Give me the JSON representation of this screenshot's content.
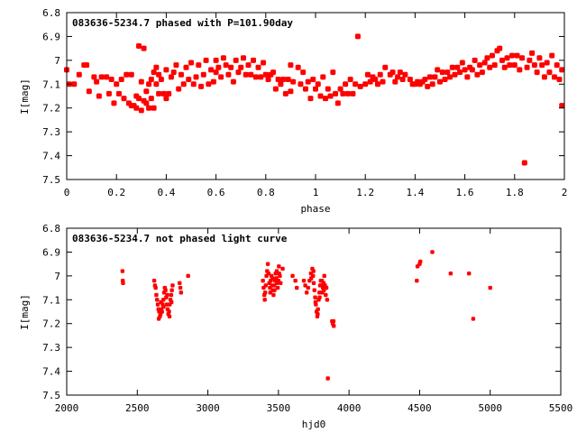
{
  "chart_data": [
    {
      "type": "scatter",
      "title": "083636-5234.7 phased with P=101.90day",
      "xlabel": "phase",
      "ylabel": "I[mag]",
      "xlim": [
        0,
        2
      ],
      "ylim": [
        6.8,
        7.5
      ],
      "y_inverted": true,
      "xticks": [
        "0",
        "0.2",
        "0.4",
        "0.6",
        "0.8",
        "1",
        "1.2",
        "1.4",
        "1.6",
        "1.8",
        "2"
      ],
      "yticks": [
        "6.8",
        "6.9",
        "7",
        "7.1",
        "7.2",
        "7.3",
        "7.4",
        "7.5"
      ],
      "grid": false,
      "color": "#ff0000",
      "points": [
        [
          0.0,
          7.04
        ],
        [
          0.01,
          7.1
        ],
        [
          0.03,
          7.1
        ],
        [
          0.05,
          7.06
        ],
        [
          0.07,
          7.02
        ],
        [
          0.08,
          7.02
        ],
        [
          0.09,
          7.13
        ],
        [
          0.11,
          7.07
        ],
        [
          0.12,
          7.09
        ],
        [
          0.13,
          7.15
        ],
        [
          0.14,
          7.07
        ],
        [
          0.16,
          7.07
        ],
        [
          0.17,
          7.14
        ],
        [
          0.18,
          7.08
        ],
        [
          0.19,
          7.18
        ],
        [
          0.2,
          7.1
        ],
        [
          0.21,
          7.14
        ],
        [
          0.22,
          7.08
        ],
        [
          0.23,
          7.16
        ],
        [
          0.24,
          7.06
        ],
        [
          0.25,
          7.18
        ],
        [
          0.26,
          7.06
        ],
        [
          0.26,
          7.19
        ],
        [
          0.27,
          7.19
        ],
        [
          0.28,
          7.15
        ],
        [
          0.28,
          7.2
        ],
        [
          0.29,
          7.16
        ],
        [
          0.29,
          6.94
        ],
        [
          0.3,
          7.21
        ],
        [
          0.3,
          7.09
        ],
        [
          0.31,
          7.17
        ],
        [
          0.31,
          6.95
        ],
        [
          0.32,
          7.13
        ],
        [
          0.32,
          7.18
        ],
        [
          0.33,
          7.1
        ],
        [
          0.33,
          7.2
        ],
        [
          0.34,
          7.08
        ],
        [
          0.34,
          7.16
        ],
        [
          0.35,
          7.05
        ],
        [
          0.35,
          7.2
        ],
        [
          0.36,
          7.1
        ],
        [
          0.36,
          7.03
        ],
        [
          0.37,
          7.06
        ],
        [
          0.37,
          7.14
        ],
        [
          0.38,
          7.08
        ],
        [
          0.39,
          7.14
        ],
        [
          0.4,
          7.04
        ],
        [
          0.4,
          7.16
        ],
        [
          0.41,
          7.14
        ],
        [
          0.42,
          7.07
        ],
        [
          0.43,
          7.05
        ],
        [
          0.44,
          7.02
        ],
        [
          0.45,
          7.12
        ],
        [
          0.46,
          7.06
        ],
        [
          0.47,
          7.1
        ],
        [
          0.48,
          7.03
        ],
        [
          0.49,
          7.08
        ],
        [
          0.5,
          7.01
        ],
        [
          0.51,
          7.1
        ],
        [
          0.52,
          7.07
        ],
        [
          0.53,
          7.02
        ],
        [
          0.54,
          7.11
        ],
        [
          0.55,
          7.06
        ],
        [
          0.56,
          7.0
        ],
        [
          0.57,
          7.1
        ],
        [
          0.58,
          7.04
        ],
        [
          0.59,
          7.09
        ],
        [
          0.6,
          7.0
        ],
        [
          0.6,
          7.05
        ],
        [
          0.61,
          7.03
        ],
        [
          0.62,
          7.07
        ],
        [
          0.63,
          6.99
        ],
        [
          0.64,
          7.02
        ],
        [
          0.65,
          7.06
        ],
        [
          0.66,
          7.03
        ],
        [
          0.67,
          7.09
        ],
        [
          0.68,
          7.0
        ],
        [
          0.69,
          7.05
        ],
        [
          0.7,
          7.03
        ],
        [
          0.71,
          6.99
        ],
        [
          0.72,
          7.06
        ],
        [
          0.73,
          7.02
        ],
        [
          0.74,
          7.06
        ],
        [
          0.75,
          7.0
        ],
        [
          0.76,
          7.07
        ],
        [
          0.77,
          7.03
        ],
        [
          0.78,
          7.07
        ],
        [
          0.79,
          7.01
        ],
        [
          0.8,
          7.06
        ],
        [
          0.81,
          7.08
        ],
        [
          0.82,
          7.06
        ],
        [
          0.83,
          7.05
        ],
        [
          0.84,
          7.12
        ],
        [
          0.85,
          7.08
        ],
        [
          0.86,
          7.1
        ],
        [
          0.87,
          7.08
        ],
        [
          0.88,
          7.14
        ],
        [
          0.89,
          7.08
        ],
        [
          0.9,
          7.13
        ],
        [
          0.9,
          7.02
        ],
        [
          0.91,
          7.09
        ],
        [
          0.93,
          7.03
        ],
        [
          0.94,
          7.1
        ],
        [
          0.95,
          7.05
        ],
        [
          0.96,
          7.12
        ],
        [
          0.97,
          7.09
        ],
        [
          0.98,
          7.16
        ],
        [
          0.99,
          7.08
        ],
        [
          1.0,
          7.12
        ],
        [
          1.01,
          7.1
        ],
        [
          1.02,
          7.15
        ],
        [
          1.03,
          7.07
        ],
        [
          1.04,
          7.16
        ],
        [
          1.05,
          7.12
        ],
        [
          1.06,
          7.15
        ],
        [
          1.07,
          7.05
        ],
        [
          1.08,
          7.14
        ],
        [
          1.09,
          7.18
        ],
        [
          1.1,
          7.12
        ],
        [
          1.11,
          7.14
        ],
        [
          1.12,
          7.1
        ],
        [
          1.13,
          7.14
        ],
        [
          1.14,
          7.08
        ],
        [
          1.15,
          7.14
        ],
        [
          1.16,
          7.1
        ],
        [
          1.17,
          6.9
        ],
        [
          1.18,
          7.11
        ],
        [
          1.2,
          7.1
        ],
        [
          1.21,
          7.06
        ],
        [
          1.22,
          7.09
        ],
        [
          1.23,
          7.07
        ],
        [
          1.24,
          7.08
        ],
        [
          1.25,
          7.1
        ],
        [
          1.26,
          7.06
        ],
        [
          1.27,
          7.09
        ],
        [
          1.28,
          7.03
        ],
        [
          1.3,
          7.06
        ],
        [
          1.31,
          7.05
        ],
        [
          1.32,
          7.09
        ],
        [
          1.33,
          7.07
        ],
        [
          1.34,
          7.05
        ],
        [
          1.35,
          7.08
        ],
        [
          1.36,
          7.06
        ],
        [
          1.38,
          7.08
        ],
        [
          1.39,
          7.1
        ],
        [
          1.4,
          7.1
        ],
        [
          1.41,
          7.09
        ],
        [
          1.42,
          7.1
        ],
        [
          1.43,
          7.09
        ],
        [
          1.44,
          7.08
        ],
        [
          1.45,
          7.11
        ],
        [
          1.46,
          7.07
        ],
        [
          1.47,
          7.1
        ],
        [
          1.48,
          7.07
        ],
        [
          1.49,
          7.04
        ],
        [
          1.5,
          7.09
        ],
        [
          1.51,
          7.05
        ],
        [
          1.52,
          7.08
        ],
        [
          1.53,
          7.05
        ],
        [
          1.54,
          7.07
        ],
        [
          1.55,
          7.03
        ],
        [
          1.56,
          7.06
        ],
        [
          1.57,
          7.03
        ],
        [
          1.58,
          7.05
        ],
        [
          1.59,
          7.01
        ],
        [
          1.6,
          7.04
        ],
        [
          1.61,
          7.07
        ],
        [
          1.62,
          7.03
        ],
        [
          1.63,
          7.04
        ],
        [
          1.64,
          7.0
        ],
        [
          1.65,
          7.06
        ],
        [
          1.66,
          7.02
        ],
        [
          1.67,
          7.05
        ],
        [
          1.68,
          7.01
        ],
        [
          1.69,
          6.99
        ],
        [
          1.7,
          7.03
        ],
        [
          1.71,
          6.98
        ],
        [
          1.72,
          7.02
        ],
        [
          1.73,
          6.96
        ],
        [
          1.74,
          6.95
        ],
        [
          1.75,
          7.0
        ],
        [
          1.76,
          7.03
        ],
        [
          1.77,
          6.99
        ],
        [
          1.78,
          7.02
        ],
        [
          1.79,
          6.98
        ],
        [
          1.8,
          7.02
        ],
        [
          1.81,
          6.98
        ],
        [
          1.82,
          7.04
        ],
        [
          1.83,
          6.99
        ],
        [
          1.84,
          7.43
        ],
        [
          1.85,
          7.03
        ],
        [
          1.86,
          7.0
        ],
        [
          1.87,
          6.97
        ],
        [
          1.88,
          7.02
        ],
        [
          1.89,
          7.05
        ],
        [
          1.9,
          6.99
        ],
        [
          1.91,
          7.02
        ],
        [
          1.92,
          7.07
        ],
        [
          1.93,
          7.01
        ],
        [
          1.94,
          7.05
        ],
        [
          1.95,
          6.98
        ],
        [
          1.96,
          7.07
        ],
        [
          1.97,
          7.02
        ],
        [
          1.98,
          7.08
        ],
        [
          1.99,
          7.04
        ],
        [
          1.99,
          7.19
        ]
      ]
    },
    {
      "type": "scatter",
      "title": "083636-5234.7 not phased light curve",
      "xlabel": "hjd0",
      "ylabel": "I[mag]",
      "xlim": [
        2000,
        5500
      ],
      "ylim": [
        6.8,
        7.5
      ],
      "y_inverted": true,
      "xticks": [
        "2000",
        "2500",
        "3000",
        "3500",
        "4000",
        "4500",
        "5000",
        "5500"
      ],
      "yticks": [
        "6.8",
        "6.9",
        "7",
        "7.1",
        "7.2",
        "7.3",
        "7.4",
        "7.5"
      ],
      "grid": false,
      "color": "#ff0000",
      "points": [
        [
          2395,
          6.98
        ],
        [
          2397,
          7.02
        ],
        [
          2399,
          7.03
        ],
        [
          2620,
          7.02
        ],
        [
          2625,
          7.04
        ],
        [
          2630,
          7.05
        ],
        [
          2635,
          7.08
        ],
        [
          2640,
          7.1
        ],
        [
          2645,
          7.12
        ],
        [
          2650,
          7.14
        ],
        [
          2655,
          7.15
        ],
        [
          2660,
          7.17
        ],
        [
          2665,
          7.16
        ],
        [
          2670,
          7.14
        ],
        [
          2675,
          7.15
        ],
        [
          2680,
          7.12
        ],
        [
          2685,
          7.1
        ],
        [
          2690,
          7.07
        ],
        [
          2695,
          7.05
        ],
        [
          2700,
          7.06
        ],
        [
          2705,
          7.09
        ],
        [
          2710,
          7.12
        ],
        [
          2715,
          7.14
        ],
        [
          2720,
          7.16
        ],
        [
          2725,
          7.15
        ],
        [
          2730,
          7.12
        ],
        [
          2735,
          7.1
        ],
        [
          2740,
          7.08
        ],
        [
          2745,
          7.06
        ],
        [
          2750,
          7.04
        ],
        [
          2652,
          7.18
        ],
        [
          2668,
          7.11
        ],
        [
          2686,
          7.13
        ],
        [
          2712,
          7.08
        ],
        [
          2728,
          7.17
        ],
        [
          2742,
          7.11
        ],
        [
          2800,
          7.03
        ],
        [
          2805,
          7.05
        ],
        [
          2810,
          7.07
        ],
        [
          2860,
          7.0
        ],
        [
          3390,
          7.02
        ],
        [
          3395,
          7.05
        ],
        [
          3400,
          7.08
        ],
        [
          3403,
          7.1
        ],
        [
          3406,
          7.07
        ],
        [
          3410,
          7.04
        ],
        [
          3415,
          7.0
        ],
        [
          3420,
          6.98
        ],
        [
          3425,
          6.95
        ],
        [
          3430,
          6.99
        ],
        [
          3435,
          7.03
        ],
        [
          3440,
          7.05
        ],
        [
          3445,
          7.02
        ],
        [
          3450,
          7.0
        ],
        [
          3455,
          7.04
        ],
        [
          3460,
          7.06
        ],
        [
          3465,
          7.08
        ],
        [
          3470,
          7.04
        ],
        [
          3475,
          7.02
        ],
        [
          3480,
          6.99
        ],
        [
          3485,
          7.01
        ],
        [
          3490,
          7.03
        ],
        [
          3495,
          7.05
        ],
        [
          3500,
          7.02
        ],
        [
          3505,
          6.99
        ],
        [
          3510,
          7.0
        ],
        [
          3515,
          7.03
        ],
        [
          3442,
          7.07
        ],
        [
          3458,
          7.01
        ],
        [
          3472,
          7.06
        ],
        [
          3488,
          6.98
        ],
        [
          3503,
          6.96
        ],
        [
          3530,
          6.97
        ],
        [
          3600,
          7.0
        ],
        [
          3620,
          7.02
        ],
        [
          3630,
          7.05
        ],
        [
          3680,
          7.02
        ],
        [
          3690,
          7.04
        ],
        [
          3700,
          7.07
        ],
        [
          3710,
          7.05
        ],
        [
          3720,
          7.02
        ],
        [
          3730,
          6.99
        ],
        [
          3740,
          6.97
        ],
        [
          3745,
          7.0
        ],
        [
          3750,
          7.03
        ],
        [
          3755,
          7.06
        ],
        [
          3760,
          7.09
        ],
        [
          3765,
          7.12
        ],
        [
          3770,
          7.15
        ],
        [
          3775,
          7.17
        ],
        [
          3780,
          7.14
        ],
        [
          3785,
          7.1
        ],
        [
          3790,
          7.07
        ],
        [
          3795,
          7.04
        ],
        [
          3800,
          7.02
        ],
        [
          3805,
          7.04
        ],
        [
          3810,
          7.07
        ],
        [
          3815,
          7.05
        ],
        [
          3820,
          7.03
        ],
        [
          3825,
          7.0
        ],
        [
          3830,
          7.04
        ],
        [
          3835,
          7.08
        ],
        [
          3840,
          7.05
        ],
        [
          3845,
          7.1
        ],
        [
          3732,
          7.01
        ],
        [
          3748,
          6.98
        ],
        [
          3762,
          7.11
        ],
        [
          3778,
          7.16
        ],
        [
          3792,
          7.09
        ],
        [
          3808,
          7.02
        ],
        [
          3822,
          7.06
        ],
        [
          3850,
          7.43
        ],
        [
          3880,
          7.19
        ],
        [
          3885,
          7.2
        ],
        [
          3890,
          7.19
        ],
        [
          3892,
          7.21
        ],
        [
          4480,
          7.02
        ],
        [
          4485,
          6.96
        ],
        [
          4500,
          6.95
        ],
        [
          4505,
          6.94
        ],
        [
          4590,
          6.9
        ],
        [
          4720,
          6.99
        ],
        [
          4850,
          6.99
        ],
        [
          4880,
          7.18
        ],
        [
          5000,
          7.05
        ]
      ]
    }
  ]
}
